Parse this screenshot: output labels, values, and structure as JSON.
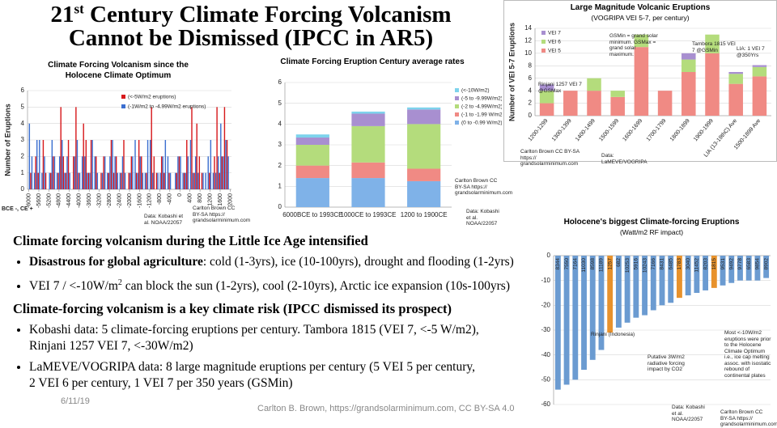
{
  "title": {
    "lead": "21",
    "sup": "st",
    "rest": " Century Climate Forcing Volcanism",
    "line2": "Cannot be Dismissed (IPCC in AR5)"
  },
  "sections": [
    {
      "heading": "Climate forcing volcanism during the Little Ice Age intensified",
      "bullet1_bold": "Disastrous for global agriculture",
      "bullet1_text": ": cold (1-3yrs), ice (10-100yrs), drought and flooding (1-2yrs)",
      "bullet2_text": "VEI 7 / <-10W/m",
      "bullet2_sup": "2",
      "bullet2_rest": " can block the sun (1-2yrs), cool (2-10yrs), Arctic ice expansion (10s-100yrs)"
    },
    {
      "heading": "Climate-forcing volcanism is a key climate risk (IPCC dismissed its prospect)",
      "bullet1_text": "Kobashi data: 5 climate-forcing eruptions per century. Tambora 1815 (VEI 7, <-5 W/m2), Rinjani 1257 VEI 7, <-30W/m2)",
      "bullet2_text": "LaMEVE/VOGRIPA data: 8 large magnitude eruptions per century (5 VEI 5 per century, 2 VEI 6 per century, 1 VEI 7 per 350 years (GSMin)"
    }
  ],
  "footer": {
    "date": "6/11/19",
    "credit": "Carlton B. Brown, https://grandsolarminimum.com, CC BY-SA 4.0"
  },
  "chart_data": [
    {
      "type": "bar",
      "title": "Climate Forcing Volcanism since the Holocene Climate Optimum",
      "ylabel": "Number of Eruptions",
      "xlabel": "BCE -, CE +",
      "x": [
        -6000,
        -5900,
        -5800,
        -5700,
        -5600,
        -5500,
        -5400,
        -5300,
        -5200,
        -5100,
        -5000,
        -4900,
        -4800,
        -4700,
        -4600,
        -4500,
        -4400,
        -4300,
        -4200,
        -4100,
        -4000,
        -3900,
        -3800,
        -3700,
        -3600,
        -3500,
        -3400,
        -3300,
        -3200,
        -3100,
        -3000,
        -2900,
        -2800,
        -2700,
        -2600,
        -2500,
        -2400,
        -2300,
        -2200,
        -2100,
        -2000,
        -1900,
        -1800,
        -1700,
        -1600,
        -1500,
        -1400,
        -1300,
        -1200,
        -1100,
        -1000,
        -900,
        -800,
        -700,
        -600,
        -500,
        -400,
        -300,
        -200,
        -100,
        0,
        100,
        200,
        300,
        400,
        500,
        600,
        700,
        800,
        900,
        1000,
        1100,
        1200,
        1300,
        1400,
        1500,
        1600,
        1700,
        1800,
        1900
      ],
      "series": [
        {
          "name": "(<-5W/m2 eruptions)",
          "color": "#d7191c",
          "values": [
            0,
            1,
            0,
            2,
            1,
            0,
            3,
            1,
            0,
            1,
            2,
            0,
            1,
            5,
            2,
            1,
            3,
            0,
            2,
            5,
            1,
            0,
            4,
            3,
            1,
            3,
            0,
            2,
            0,
            1,
            2,
            0,
            1,
            3,
            1,
            2,
            0,
            1,
            3,
            0,
            1,
            2,
            0,
            1,
            3,
            2,
            0,
            1,
            0,
            5,
            2,
            1,
            0,
            2,
            1,
            0,
            1,
            0,
            0,
            1,
            2,
            0,
            1,
            3,
            0,
            5,
            1,
            4,
            2,
            1,
            0,
            0,
            1,
            0,
            2,
            5,
            1,
            2,
            5,
            3
          ]
        },
        {
          "name": "(-1W/m2 to -4.99W/m2 eruptions)",
          "color": "#3b6fd0",
          "values": [
            4,
            2,
            1,
            3,
            3,
            1,
            2,
            0,
            1,
            3,
            2,
            1,
            2,
            3,
            1,
            2,
            1,
            0,
            2,
            3,
            1,
            2,
            2,
            1,
            1,
            3,
            2,
            1,
            0,
            1,
            2,
            1,
            2,
            3,
            2,
            1,
            1,
            2,
            1,
            0,
            1,
            2,
            3,
            1,
            2,
            1,
            1,
            3,
            3,
            1,
            0,
            1,
            1,
            2,
            3,
            2,
            1,
            0,
            1,
            2,
            2,
            1,
            1,
            2,
            3,
            1,
            2,
            1,
            0,
            1,
            1,
            2,
            3,
            1,
            1,
            2,
            4,
            2,
            3,
            2
          ]
        }
      ],
      "xlim": [
        -6050,
        2050
      ],
      "xticks": [
        -6000,
        -5600,
        -5200,
        -4800,
        -4400,
        -4000,
        -3600,
        -3200,
        -2800,
        -2400,
        -2000,
        -1600,
        -1200,
        -800,
        -400,
        0,
        400,
        800,
        1200,
        1600,
        2000
      ],
      "ylim": [
        0,
        6
      ],
      "yticks": [
        0,
        1,
        2,
        3,
        4,
        5,
        6
      ],
      "grid": true,
      "annotations": [
        "Data: Kobashi et al. NOAA/22057",
        "Carlton Brown CC BY-SA https:// grandsolarminimum.com"
      ]
    },
    {
      "type": "stacked_bar",
      "title": "Climate Forcing Eruption Century average rates",
      "categories": [
        "6000BCE to 1993CE",
        "1000CE to 1993CE",
        "1200 to 1900CE"
      ],
      "series": [
        {
          "name": "(0 to -0.99 W/m2)",
          "color": "#7fb2e8",
          "values": [
            1.4,
            1.4,
            1.25
          ]
        },
        {
          "name": "(-1 to -1.99 W/m2)",
          "color": "#f08a84",
          "values": [
            0.6,
            0.75,
            0.6
          ]
        },
        {
          "name": "(-2 to -4.99W/m2)",
          "color": "#b4dc7c",
          "values": [
            1.0,
            1.75,
            2.15
          ]
        },
        {
          "name": "(-5 to -9.99W/m2)",
          "color": "#a88fd0",
          "values": [
            0.35,
            0.6,
            0.7
          ]
        },
        {
          "name": "(<-10W/m2)",
          "color": "#7ed3ec",
          "values": [
            0.15,
            0.1,
            0.1
          ]
        }
      ],
      "ylim": [
        0,
        6
      ],
      "yticks": [
        0,
        1,
        2,
        3,
        4,
        5,
        6
      ],
      "grid": true,
      "annotations": [
        "Carlton Brown CC BY-SA https:// grandsolarminimum.com",
        "Data: Kobashi et al. NOAA/22057"
      ]
    },
    {
      "type": "stacked_bar",
      "title": "Large Magnitude Volcanic Eruptions",
      "subtitle": "(VOGRIPA VEI 5-7, per century)",
      "ylabel": "Number of VEI 5-7 Eruptions",
      "categories": [
        "1200-1299",
        "1300-1399",
        "1400-1499",
        "1500-1599",
        "1600-1699",
        "1700-1799",
        "1800-1899",
        "1900-1999",
        "LIA (13-19thC) Ave",
        "1500-1899 Ave"
      ],
      "series": [
        {
          "name": "VEI 5",
          "color": "#f08a84",
          "values": [
            2,
            4,
            4,
            3,
            11,
            4,
            7,
            10,
            5.1,
            6.3
          ]
        },
        {
          "name": "VEI 6",
          "color": "#b4dc7c",
          "values": [
            2,
            0,
            2,
            1,
            2,
            0,
            2,
            3,
            1.6,
            1.5
          ]
        },
        {
          "name": "VEI 7",
          "color": "#a88fd0",
          "values": [
            1,
            0,
            0,
            0,
            0,
            0,
            1,
            0,
            0.3,
            0.3
          ]
        }
      ],
      "ylim": [
        0,
        14
      ],
      "yticks": [
        0,
        2,
        4,
        6,
        8,
        10,
        12,
        14
      ],
      "grid": true,
      "annotations": [
        "GSMin = grand solar minimum. GSMax = grand solar maximum.",
        "Tambora 1815 VEI 7 @GSMin",
        "LIA: 1 VEI 7 @350Yrs",
        "Rinjani 1257 VEI 7 @GSMax",
        "Carlton Brown CC BY-SA https:// grandsolarminimum.com",
        "Data: LaMEVE/VOGRIPA"
      ]
    },
    {
      "type": "bar",
      "title": "Holocene's biggest Climate-forcing Eruptions",
      "subtitle": "(Watt/m2 RF impact)",
      "categories": [
        "8344",
        "7550",
        "7164",
        "11030",
        "8598",
        "11189",
        "1257",
        "682",
        "10253",
        "5916",
        "10243",
        "7166",
        "8431",
        "6485",
        "1783",
        "3040",
        "11452",
        "8203",
        "1815",
        "9531",
        "9492",
        "9778",
        "6583",
        "9854",
        "8902"
      ],
      "values": [
        -54,
        -52,
        -50,
        -46,
        -42,
        -38,
        -31,
        -29,
        -27,
        -25,
        -24,
        -22,
        -20,
        -19,
        -17,
        -16,
        -15,
        -14,
        -13,
        -12,
        -11,
        -10,
        -10,
        -10,
        -9
      ],
      "colors": [
        "#6b9bd1",
        "#6b9bd1",
        "#6b9bd1",
        "#6b9bd1",
        "#6b9bd1",
        "#6b9bd1",
        "#e8922c",
        "#6b9bd1",
        "#6b9bd1",
        "#6b9bd1",
        "#6b9bd1",
        "#6b9bd1",
        "#6b9bd1",
        "#6b9bd1",
        "#e8922c",
        "#6b9bd1",
        "#6b9bd1",
        "#6b9bd1",
        "#e8922c",
        "#6b9bd1",
        "#6b9bd1",
        "#6b9bd1",
        "#6b9bd1",
        "#6b9bd1",
        "#6b9bd1"
      ],
      "ylim": [
        -60,
        0
      ],
      "yticks": [
        0,
        -10,
        -20,
        -30,
        -40,
        -50,
        -60
      ],
      "grid": true,
      "annotations": [
        "Rinjani (Indonesia)",
        "Putative 3W/m2 radiative forcing impact by CO2",
        "Most <-10W/m2 eruptions were prior to the Holocene Climate Optimum i.e., ice cap melting assoc. with isostatic rebound of continental plates",
        "Data: Kobashi et al. NOAA/22057",
        "Carlton Brown CC BY-SA https:// grandsolarminimum.com"
      ]
    }
  ]
}
